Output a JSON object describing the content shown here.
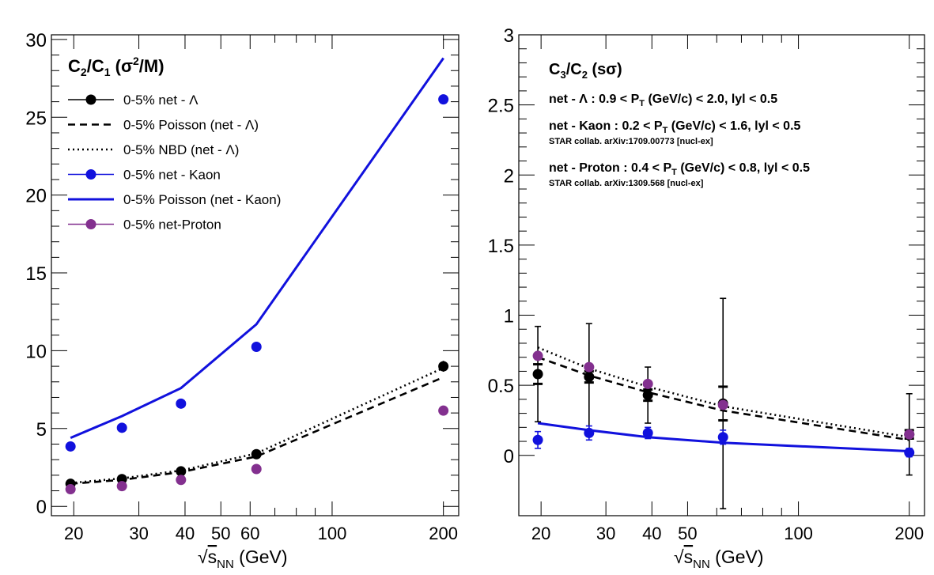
{
  "chart_data": [
    {
      "type": "scatter",
      "title": "C2/C1 (σ²/M)",
      "title_parts": {
        "c2": "C",
        "c2_sub": "2",
        "sep": "/",
        "c1": "C",
        "c1_sub": "1",
        "rest_open": " (σ",
        "rest_sup": "2",
        "rest_close": "/M)"
      },
      "xlabel_parts": {
        "sqrt": "√",
        "s": "s",
        "sub": "NN",
        "unit": " (GeV)"
      },
      "x_scale": "log",
      "xlim": [
        17.4,
        220
      ],
      "ylim": [
        -0.6,
        30.3
      ],
      "yticks": [
        0,
        5,
        10,
        15,
        20,
        25,
        30
      ],
      "xtick_labels": [
        {
          "v": 20,
          "t": "20"
        },
        {
          "v": 30,
          "t": "30"
        },
        {
          "v": 40,
          "t": "40"
        },
        {
          "v": 50,
          "t": "50"
        },
        {
          "v": 60,
          "t": "60"
        },
        {
          "v": 100,
          "t": "100"
        },
        {
          "v": 200,
          "t": "200"
        }
      ],
      "legend_position": "top-left",
      "series": [
        {
          "name": "0-5% net - Λ",
          "style": "marker",
          "color": "#000000",
          "x": [
            19.6,
            27,
            39,
            62.4,
            200
          ],
          "y": [
            1.45,
            1.75,
            2.25,
            3.35,
            9.0
          ],
          "err": [
            0.1,
            0.1,
            0.12,
            0.15,
            0.35
          ]
        },
        {
          "name": "0-5% Poisson (net - Λ)",
          "style": "dashed",
          "color": "#000000",
          "x": [
            19.6,
            27,
            39,
            62.4,
            200
          ],
          "y": [
            1.45,
            1.7,
            2.2,
            3.2,
            8.3
          ]
        },
        {
          "name": "0-5% NBD (net - Λ)",
          "style": "dotted",
          "color": "#000000",
          "x": [
            19.6,
            27,
            39,
            62.4,
            200
          ],
          "y": [
            1.5,
            1.8,
            2.3,
            3.4,
            8.9
          ]
        },
        {
          "name": "0-5% net - Kaon",
          "style": "marker",
          "color": "#1111dd",
          "x": [
            19.6,
            27,
            39,
            62.4,
            200
          ],
          "y": [
            3.85,
            5.05,
            6.6,
            10.25,
            26.15
          ]
        },
        {
          "name": "0-5% Poisson (net - Kaon)",
          "style": "solid",
          "color": "#1111dd",
          "x": [
            19.6,
            27,
            39,
            62.4,
            200
          ],
          "y": [
            4.4,
            5.8,
            7.6,
            11.7,
            28.8
          ]
        },
        {
          "name": "0-5% net-Proton",
          "style": "marker",
          "color": "#83308f",
          "x": [
            19.6,
            27,
            39,
            62.4,
            200
          ],
          "y": [
            1.1,
            1.3,
            1.7,
            2.4,
            6.15
          ]
        }
      ]
    },
    {
      "type": "scatter",
      "title": "C3/C2 (sσ)",
      "title_parts": {
        "c3": "C",
        "c3_sub": "3",
        "sep": "/",
        "c2": "C",
        "c2_sub": "2",
        "rest": " (sσ)"
      },
      "xlabel_parts": {
        "sqrt": "√",
        "s": "s",
        "sub": "NN",
        "unit": " (GeV)"
      },
      "x_scale": "log",
      "xlim": [
        17.4,
        220
      ],
      "ylim": [
        -0.43,
        3.0
      ],
      "yticks": [
        0,
        0.5,
        1,
        1.5,
        2,
        2.5,
        3
      ],
      "ytick_labels": [
        "0",
        "0.5",
        "1",
        "1.5",
        "2",
        "2.5",
        "3"
      ],
      "xtick_labels": [
        {
          "v": 20,
          "t": "20"
        },
        {
          "v": 30,
          "t": "30"
        },
        {
          "v": 40,
          "t": "40"
        },
        {
          "v": 50,
          "t": "50"
        },
        {
          "v": 100,
          "t": "100"
        },
        {
          "v": 200,
          "t": "200"
        }
      ],
      "annotations": [
        {
          "pre": "net - Λ : 0.9 < P",
          "sub": "T",
          "post": " (GeV/c) < 2.0, lyl < 0.5",
          "ref": ""
        },
        {
          "pre": "net - Kaon : 0.2 < P",
          "sub": "T",
          "post": " (GeV/c) < 1.6, lyl < 0.5",
          "ref": "STAR collab. arXiv:1709.00773 [nucl-ex]"
        },
        {
          "pre": "net - Proton : 0.4 < P",
          "sub": "T",
          "post": " (GeV/c) < 0.8, lyl < 0.5",
          "ref": "STAR collab. arXiv:1309.568 [nucl-ex]"
        }
      ],
      "series": [
        {
          "name": "net - Λ",
          "style": "marker",
          "color": "#000000",
          "x": [
            19.6,
            27,
            39,
            62.4,
            200
          ],
          "y": [
            0.58,
            0.56,
            0.43,
            0.37,
            0.15
          ],
          "err": [
            0.34,
            0.38,
            0.2,
            0.75,
            0.29
          ],
          "sys": [
            0.07,
            0.04,
            0.04,
            0.12,
            0.03
          ]
        },
        {
          "name": "net - Kaon",
          "style": "marker",
          "color": "#1111dd",
          "x": [
            19.6,
            27,
            39,
            62.4,
            200
          ],
          "y": [
            0.11,
            0.16,
            0.16,
            0.13,
            0.02
          ],
          "err": [
            0.06,
            0.05,
            0.04,
            0.05,
            0.03
          ]
        },
        {
          "name": "net - Proton",
          "style": "marker",
          "color": "#83308f",
          "x": [
            19.6,
            27,
            39,
            62.4,
            200
          ],
          "y": [
            0.71,
            0.63,
            0.51,
            0.36,
            0.15
          ]
        },
        {
          "name": "Poisson (net - Λ)",
          "style": "dashed",
          "color": "#000000",
          "x": [
            19.6,
            27,
            39,
            62.4,
            200
          ],
          "y": [
            0.7,
            0.57,
            0.45,
            0.32,
            0.11
          ]
        },
        {
          "name": "NBD (net - Λ)",
          "style": "dotted",
          "color": "#000000",
          "x": [
            19.6,
            27,
            39,
            62.4,
            200
          ],
          "y": [
            0.77,
            0.62,
            0.49,
            0.35,
            0.13
          ]
        },
        {
          "name": "Poisson (net - Kaon)",
          "style": "solid",
          "color": "#1111dd",
          "x": [
            19.6,
            27,
            39,
            62.4,
            200
          ],
          "y": [
            0.23,
            0.18,
            0.13,
            0.09,
            0.03
          ]
        }
      ]
    }
  ]
}
